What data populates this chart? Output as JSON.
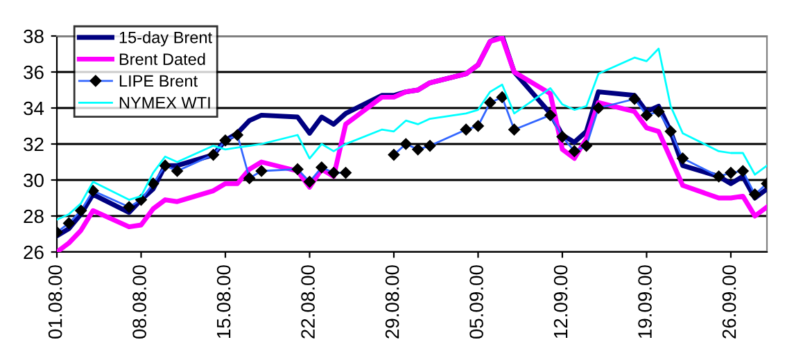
{
  "chart_data": {
    "type": "line",
    "x": [
      "2000-08-01",
      "2000-08-02",
      "2000-08-03",
      "2000-08-04",
      "2000-08-07",
      "2000-08-08",
      "2000-08-09",
      "2000-08-10",
      "2000-08-11",
      "2000-08-14",
      "2000-08-15",
      "2000-08-16",
      "2000-08-17",
      "2000-08-18",
      "2000-08-21",
      "2000-08-22",
      "2000-08-23",
      "2000-08-24",
      "2000-08-25",
      "2000-08-28",
      "2000-08-29",
      "2000-08-30",
      "2000-08-31",
      "2000-09-01",
      "2000-09-04",
      "2000-09-05",
      "2000-09-06",
      "2000-09-07",
      "2000-09-08",
      "2000-09-11",
      "2000-09-12",
      "2000-09-13",
      "2000-09-14",
      "2000-09-15",
      "2000-09-18",
      "2000-09-19",
      "2000-09-20",
      "2000-09-21",
      "2000-09-22",
      "2000-09-25",
      "2000-09-26",
      "2000-09-27",
      "2000-09-28",
      "2000-09-29"
    ],
    "series": [
      {
        "name": "15-day Brent",
        "color": "#000080",
        "marker": "none",
        "values": [
          26.9,
          27.3,
          28.1,
          29.2,
          28.2,
          28.9,
          29.5,
          30.8,
          30.8,
          31.4,
          32.2,
          32.6,
          33.3,
          33.6,
          33.5,
          32.6,
          33.5,
          33.1,
          33.7,
          34.7,
          34.7,
          34.9,
          35.0,
          35.4,
          35.9,
          36.4,
          37.7,
          38.0,
          36.0,
          33.7,
          32.5,
          32.1,
          32.7,
          34.9,
          34.7,
          33.8,
          34.1,
          32.7,
          30.8,
          30.2,
          29.8,
          30.2,
          29.0,
          29.5
        ]
      },
      {
        "name": "Brent Dated",
        "color": "#ff00ff",
        "marker": "none",
        "values": [
          26.0,
          26.5,
          27.2,
          28.3,
          27.4,
          27.5,
          28.4,
          28.9,
          28.8,
          29.4,
          29.8,
          29.8,
          30.6,
          31.0,
          30.5,
          29.6,
          30.6,
          30.2,
          33.1,
          34.6,
          34.6,
          34.9,
          35.0,
          35.4,
          35.9,
          36.4,
          37.7,
          37.9,
          36.0,
          34.8,
          31.7,
          31.2,
          32.3,
          34.3,
          33.8,
          32.9,
          32.7,
          31.2,
          29.7,
          29.0,
          29.0,
          29.1,
          28.0,
          28.5
        ]
      },
      {
        "name": "LIPE Brent",
        "color": "#3366ff",
        "marker": "diamond",
        "values": [
          27.1,
          27.6,
          28.3,
          29.4,
          28.5,
          28.9,
          29.8,
          30.8,
          30.5,
          31.4,
          32.2,
          32.5,
          30.1,
          30.5,
          30.6,
          29.9,
          30.7,
          30.4,
          30.4,
          null,
          31.4,
          32.0,
          31.7,
          31.9,
          32.8,
          33.0,
          34.3,
          34.6,
          32.8,
          33.6,
          32.4,
          31.6,
          31.9,
          34.0,
          34.5,
          33.6,
          33.8,
          32.7,
          31.2,
          30.2,
          30.4,
          30.5,
          29.2,
          29.8
        ]
      },
      {
        "name": "NYMEX WTI",
        "color": "#00ffff",
        "marker": "none",
        "values": [
          27.8,
          28.1,
          28.7,
          29.9,
          28.9,
          29.1,
          30.4,
          31.3,
          31.0,
          31.9,
          31.7,
          31.8,
          31.9,
          32.0,
          32.5,
          31.2,
          32.0,
          31.6,
          32.0,
          32.8,
          32.7,
          33.3,
          33.1,
          33.4,
          33.7,
          33.9,
          34.9,
          35.3,
          33.7,
          35.1,
          34.2,
          33.9,
          34.1,
          35.9,
          36.8,
          36.6,
          37.3,
          34.1,
          32.6,
          31.6,
          31.5,
          31.5,
          30.3,
          30.8
        ]
      }
    ],
    "xlim": [
      "2000-08-01",
      "2000-09-29"
    ],
    "xticks": [
      {
        "value": "2000-08-01",
        "label": "01.08.00"
      },
      {
        "value": "2000-08-08",
        "label": "08.08.00"
      },
      {
        "value": "2000-08-15",
        "label": "15.08.00"
      },
      {
        "value": "2000-08-22",
        "label": "22.08.00"
      },
      {
        "value": "2000-08-29",
        "label": "29.08.00"
      },
      {
        "value": "2000-09-05",
        "label": "05.09.00"
      },
      {
        "value": "2000-09-12",
        "label": "12.09.00"
      },
      {
        "value": "2000-09-19",
        "label": "19.09.00"
      },
      {
        "value": "2000-09-26",
        "label": "26.09.00"
      }
    ],
    "ylim": [
      26,
      38
    ],
    "yticks": [
      26,
      28,
      30,
      32,
      34,
      36,
      38
    ],
    "grid": "y",
    "legend": "top left"
  }
}
